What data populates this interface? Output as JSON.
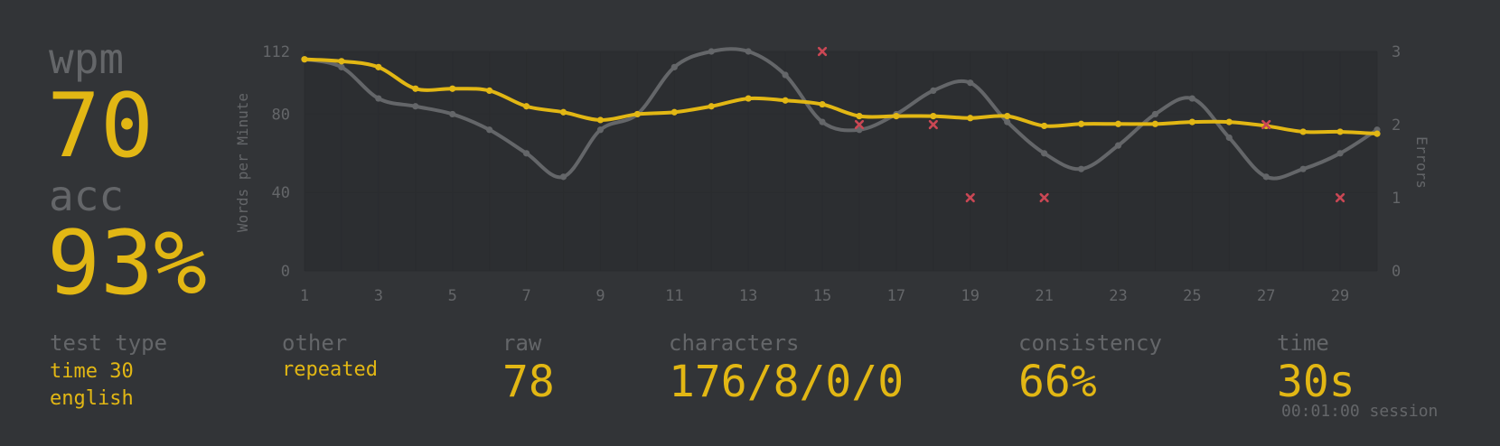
{
  "summary": {
    "wpm_label": "wpm",
    "wpm_value": "70",
    "acc_label": "acc",
    "acc_value": "93%"
  },
  "stats": {
    "test_type": {
      "label": "test type",
      "lines": [
        "time 30",
        "english"
      ]
    },
    "other": {
      "label": "other",
      "value": "repeated"
    },
    "raw": {
      "label": "raw",
      "value": "78"
    },
    "characters": {
      "label": "characters",
      "value": "176/8/0/0"
    },
    "consistency": {
      "label": "consistency",
      "value": "66%"
    },
    "time": {
      "label": "time",
      "value": "30s"
    },
    "session": "00:01:00 session"
  },
  "colors": {
    "background": "#323437",
    "plot_area": "#2c2e31",
    "main": "#e2b714",
    "sub": "#646669",
    "raw_line": "#646669",
    "error": "#ca4754"
  },
  "chart_data": {
    "type": "line",
    "x": [
      1,
      2,
      3,
      4,
      5,
      6,
      7,
      8,
      9,
      10,
      11,
      12,
      13,
      14,
      15,
      16,
      17,
      18,
      19,
      20,
      21,
      22,
      23,
      24,
      25,
      26,
      27,
      28,
      29,
      30
    ],
    "x_ticks": [
      1,
      3,
      5,
      7,
      9,
      11,
      13,
      15,
      17,
      19,
      21,
      23,
      25,
      27,
      29
    ],
    "xlim": [
      1,
      30
    ],
    "ylabel": "Words per Minute",
    "ylim": [
      0,
      112
    ],
    "y_ticks": [
      0,
      40,
      80,
      112
    ],
    "y2label": "Errors",
    "y2lim": [
      0,
      3
    ],
    "y2_ticks": [
      0,
      1,
      2,
      3
    ],
    "series": [
      {
        "role": "raw",
        "axis": "y",
        "values": [
          108,
          104,
          88,
          84,
          80,
          72,
          60,
          48,
          72,
          80,
          104,
          112,
          112,
          100,
          76,
          72,
          80,
          92,
          96,
          76,
          60,
          52,
          64,
          80,
          88,
          68,
          48,
          52,
          60,
          72
        ]
      },
      {
        "role": "wpm",
        "axis": "y",
        "values": [
          108,
          107,
          104,
          93,
          93,
          92,
          84,
          81,
          77,
          80,
          81,
          84,
          88,
          87,
          85,
          79,
          79,
          79,
          78,
          79,
          74,
          75,
          75,
          75,
          76,
          76,
          74,
          71,
          71,
          70
        ]
      },
      {
        "role": "errors",
        "type": "scatter",
        "axis": "y2",
        "x": [
          15,
          16,
          18,
          19,
          21,
          27,
          29
        ],
        "values": [
          3,
          2,
          2,
          1,
          1,
          2,
          1
        ]
      }
    ],
    "grid": true,
    "legend": "none"
  }
}
